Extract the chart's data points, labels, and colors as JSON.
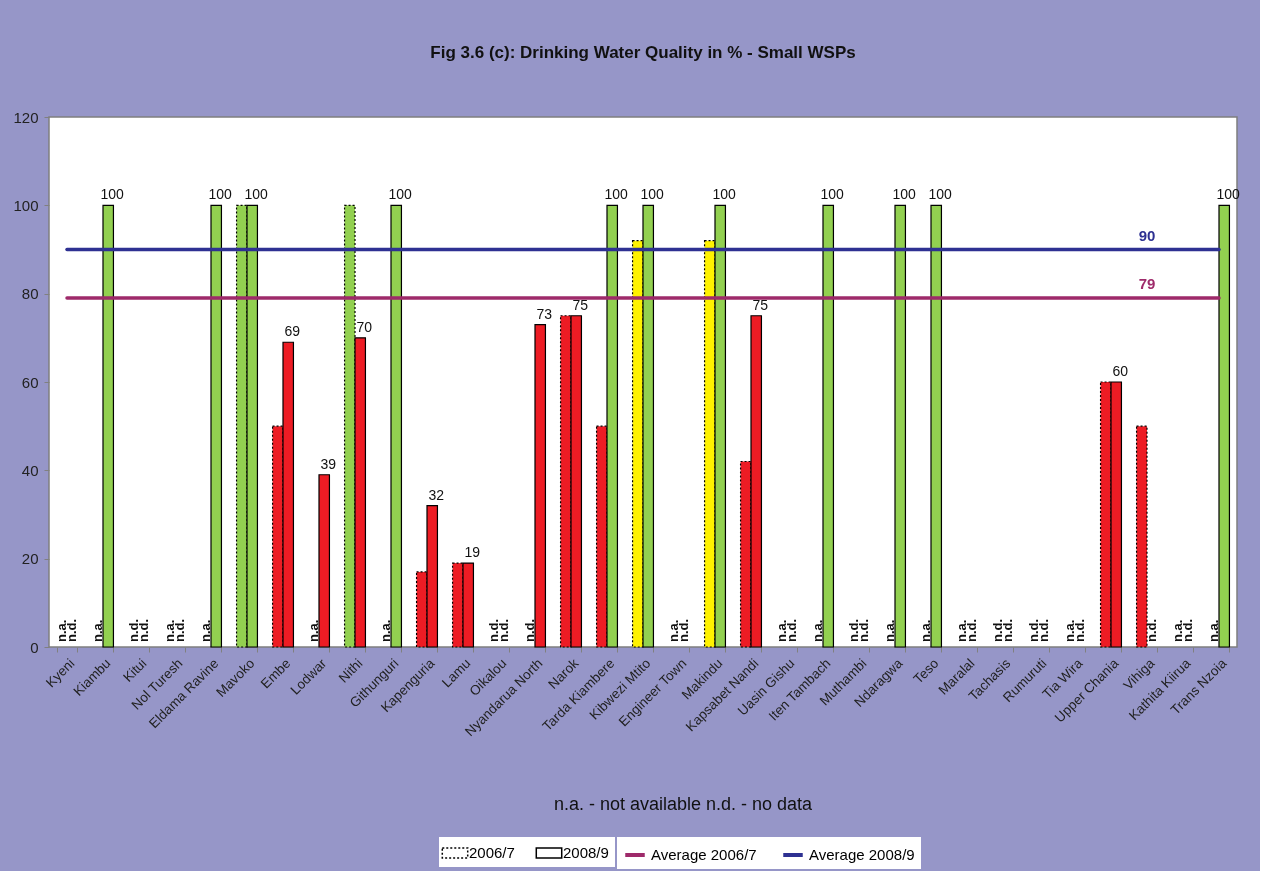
{
  "chart_data": {
    "type": "bar",
    "title": "Fig 3.6 (c): Drinking Water Quality in % - Small WSPs",
    "categories": [
      "Kyeni",
      "Kiambu",
      "Kitui",
      "Nol Turesh",
      "Eldama Ravine",
      "Mavoko",
      "Embe",
      "Lodwar",
      "Nithi",
      "Githunguri",
      "Kapenguria",
      "Lamu",
      "Oikalou",
      "Nyandarua North",
      "Narok",
      "Tarda Kiambere",
      "Kibwezi Mtito",
      "Engineer Town",
      "Makindu",
      "Kapsabet Nandi",
      "Uasin Gishu",
      "Iten Tambach",
      "Muthambi",
      "Ndaragwa",
      "Teso",
      "Maralal",
      "Tachasis",
      "Rumuruti",
      "Tia Wira",
      "Upper Chania",
      "Vihiga",
      "Kathita Kiirua",
      "Trans Nzoia"
    ],
    "series": [
      {
        "name": "2006/7",
        "line_style": "dotted",
        "values": [
          null,
          null,
          null,
          null,
          null,
          100,
          50,
          null,
          100,
          null,
          17,
          19,
          null,
          null,
          75,
          50,
          92,
          null,
          92,
          42,
          null,
          null,
          null,
          null,
          null,
          null,
          null,
          null,
          null,
          60,
          50,
          null,
          null
        ],
        "colors": [
          null,
          null,
          null,
          null,
          null,
          "#92d050",
          "#ed1c24",
          null,
          "#92d050",
          null,
          "#ed1c24",
          "#ed1c24",
          null,
          null,
          "#ed1c24",
          "#ed1c24",
          "#fff200",
          null,
          "#fff200",
          "#ed1c24",
          null,
          null,
          null,
          null,
          null,
          null,
          null,
          null,
          null,
          "#ed1c24",
          "#ed1c24",
          null,
          null
        ],
        "value_labels": [
          "n.a.",
          "n.a.",
          "n.d.",
          "n.a.",
          "n.a.",
          null,
          null,
          "n.a.",
          null,
          "n.a.",
          null,
          null,
          "n.d.",
          "n.d.",
          null,
          null,
          null,
          "n.a.",
          null,
          null,
          "n.a.",
          "n.a.",
          "n.d.",
          "n.a.",
          "n.a.",
          "n.a.",
          "n.d.",
          "n.d.",
          "n.a.",
          null,
          null,
          "n.a.",
          "n.a."
        ]
      },
      {
        "name": "2008/9",
        "values": [
          null,
          100,
          null,
          null,
          100,
          100,
          69,
          39,
          70,
          100,
          32,
          19,
          null,
          73,
          75,
          100,
          100,
          null,
          100,
          75,
          null,
          100,
          null,
          100,
          100,
          null,
          null,
          null,
          null,
          60,
          null,
          null,
          100
        ],
        "colors": [
          null,
          "#92d050",
          null,
          null,
          "#92d050",
          "#92d050",
          "#ed1c24",
          "#ed1c24",
          "#ed1c24",
          "#92d050",
          "#ed1c24",
          "#ed1c24",
          null,
          "#ed1c24",
          "#ed1c24",
          "#92d050",
          "#92d050",
          null,
          "#92d050",
          "#ed1c24",
          null,
          "#92d050",
          null,
          "#92d050",
          "#92d050",
          null,
          null,
          null,
          null,
          "#ed1c24",
          null,
          null,
          "#92d050"
        ],
        "value_labels": [
          "n.d.",
          "100",
          "n.d.",
          "n.d.",
          "100",
          "100",
          "69",
          "39",
          "70",
          "100",
          "32",
          "19",
          "n.d.",
          "73",
          "75",
          "100",
          "100",
          "n.d.",
          "100",
          "75",
          "n.d.",
          "100",
          "n.d.",
          "100",
          "100",
          "n.d.",
          "n.d.",
          "n.d.",
          "n.d.",
          "60",
          "n.d.",
          "n.d.",
          "100"
        ]
      },
      {
        "name": "Average 2006/7",
        "type": "line",
        "color": "#9e2a6a",
        "values": [
          79,
          79,
          79,
          79,
          79,
          79,
          79,
          79,
          79,
          79,
          79,
          79,
          79,
          79,
          79,
          79,
          79,
          79,
          79,
          79,
          79,
          79,
          79,
          79,
          79,
          79,
          79,
          79,
          79,
          79,
          79,
          79,
          79
        ],
        "value_labels": [
          null,
          null,
          null,
          null,
          null,
          null,
          null,
          null,
          null,
          null,
          null,
          null,
          null,
          null,
          null,
          null,
          null,
          null,
          null,
          null,
          null,
          null,
          null,
          null,
          null,
          null,
          null,
          null,
          null,
          null,
          "79",
          null,
          null
        ]
      },
      {
        "name": "Average 2008/9",
        "type": "line",
        "color": "#2e3192",
        "values": [
          90,
          90,
          90,
          90,
          90,
          90,
          90,
          90,
          90,
          90,
          90,
          90,
          90,
          90,
          90,
          90,
          90,
          90,
          90,
          90,
          90,
          90,
          90,
          90,
          90,
          90,
          90,
          90,
          90,
          90,
          90,
          90,
          90
        ],
        "value_labels": [
          null,
          null,
          null,
          null,
          null,
          null,
          null,
          null,
          null,
          null,
          null,
          null,
          null,
          null,
          null,
          null,
          null,
          null,
          null,
          null,
          null,
          null,
          null,
          null,
          null,
          null,
          null,
          null,
          null,
          null,
          "90",
          null,
          null
        ]
      }
    ],
    "ylim": [
      0,
      120
    ],
    "yticks": [
      0,
      20,
      40,
      60,
      80,
      100,
      120
    ],
    "grid": false,
    "legend": "bottom",
    "annotations": [
      "n.a. - not available   n.d. - no data"
    ]
  }
}
